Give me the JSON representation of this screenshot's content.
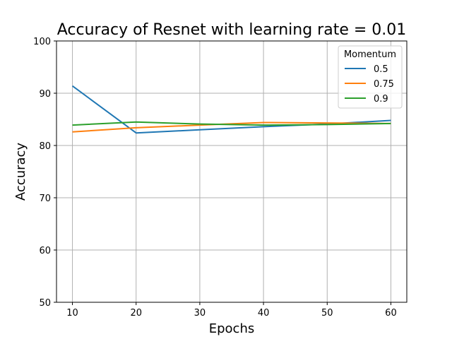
{
  "chart_data": {
    "type": "line",
    "title": "Accuracy of Resnet with learning rate = 0.01",
    "xlabel": "Epochs",
    "ylabel": "Accuracy",
    "x": [
      10,
      20,
      30,
      40,
      50,
      60
    ],
    "xticks": [
      10,
      20,
      30,
      40,
      50,
      60
    ],
    "yticks": [
      50,
      60,
      70,
      80,
      90,
      100
    ],
    "xlim": [
      7.5,
      62.5
    ],
    "ylim": [
      50,
      100
    ],
    "grid": true,
    "legend": {
      "title": "Momentum",
      "placement": "top-right"
    },
    "series": [
      {
        "name": "0.5",
        "color": "#1f77b4",
        "values": [
          91.4,
          82.4,
          83.0,
          83.6,
          84.1,
          84.8
        ]
      },
      {
        "name": "0.75",
        "color": "#ff7f0e",
        "values": [
          82.6,
          83.4,
          83.9,
          84.4,
          84.3,
          84.2
        ]
      },
      {
        "name": "0.9",
        "color": "#2ca02c",
        "values": [
          83.9,
          84.5,
          84.1,
          83.9,
          84.0,
          84.2
        ]
      }
    ]
  }
}
